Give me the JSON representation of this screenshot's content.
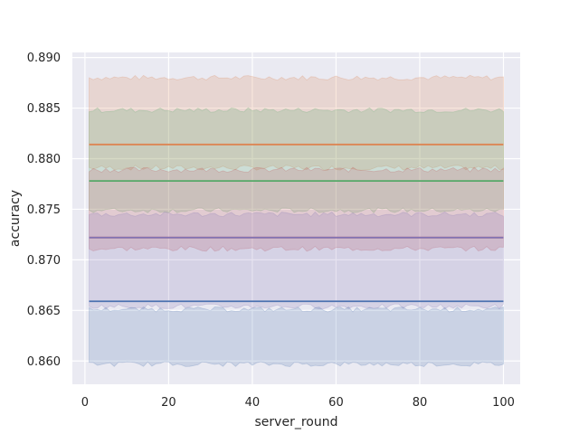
{
  "chart_data": {
    "type": "line",
    "title": "",
    "xlabel": "server_round",
    "ylabel": "accuracy",
    "xlim": [
      -3,
      104
    ],
    "ylim": [
      0.8577,
      0.8905
    ],
    "x_ticks": [
      0,
      20,
      40,
      60,
      80,
      100
    ],
    "y_ticks": [
      0.86,
      0.865,
      0.87,
      0.875,
      0.88,
      0.885,
      0.89
    ],
    "y_tick_labels": [
      "0.860",
      "0.865",
      "0.870",
      "0.875",
      "0.880",
      "0.885",
      "0.890"
    ],
    "x_range": [
      1,
      100
    ],
    "grid": true,
    "background_color": "#eaeaf2",
    "series": [
      {
        "color": "#dd8452",
        "mean": 0.8814,
        "band_lower": 0.8791,
        "band_upper": 0.888
      },
      {
        "color": "#55a868",
        "mean": 0.8778,
        "band_lower": 0.8749,
        "band_upper": 0.8848
      },
      {
        "color": "#c44e52",
        "mean": 0.8722,
        "band_lower": 0.8711,
        "band_upper": 0.8789
      },
      {
        "color": "#8172b3",
        "mean": 0.8722,
        "band_lower": 0.8654,
        "band_upper": 0.8745
      },
      {
        "color": "#4c72b0",
        "mean": 0.8659,
        "band_lower": 0.8597,
        "band_upper": 0.8651
      }
    ]
  }
}
